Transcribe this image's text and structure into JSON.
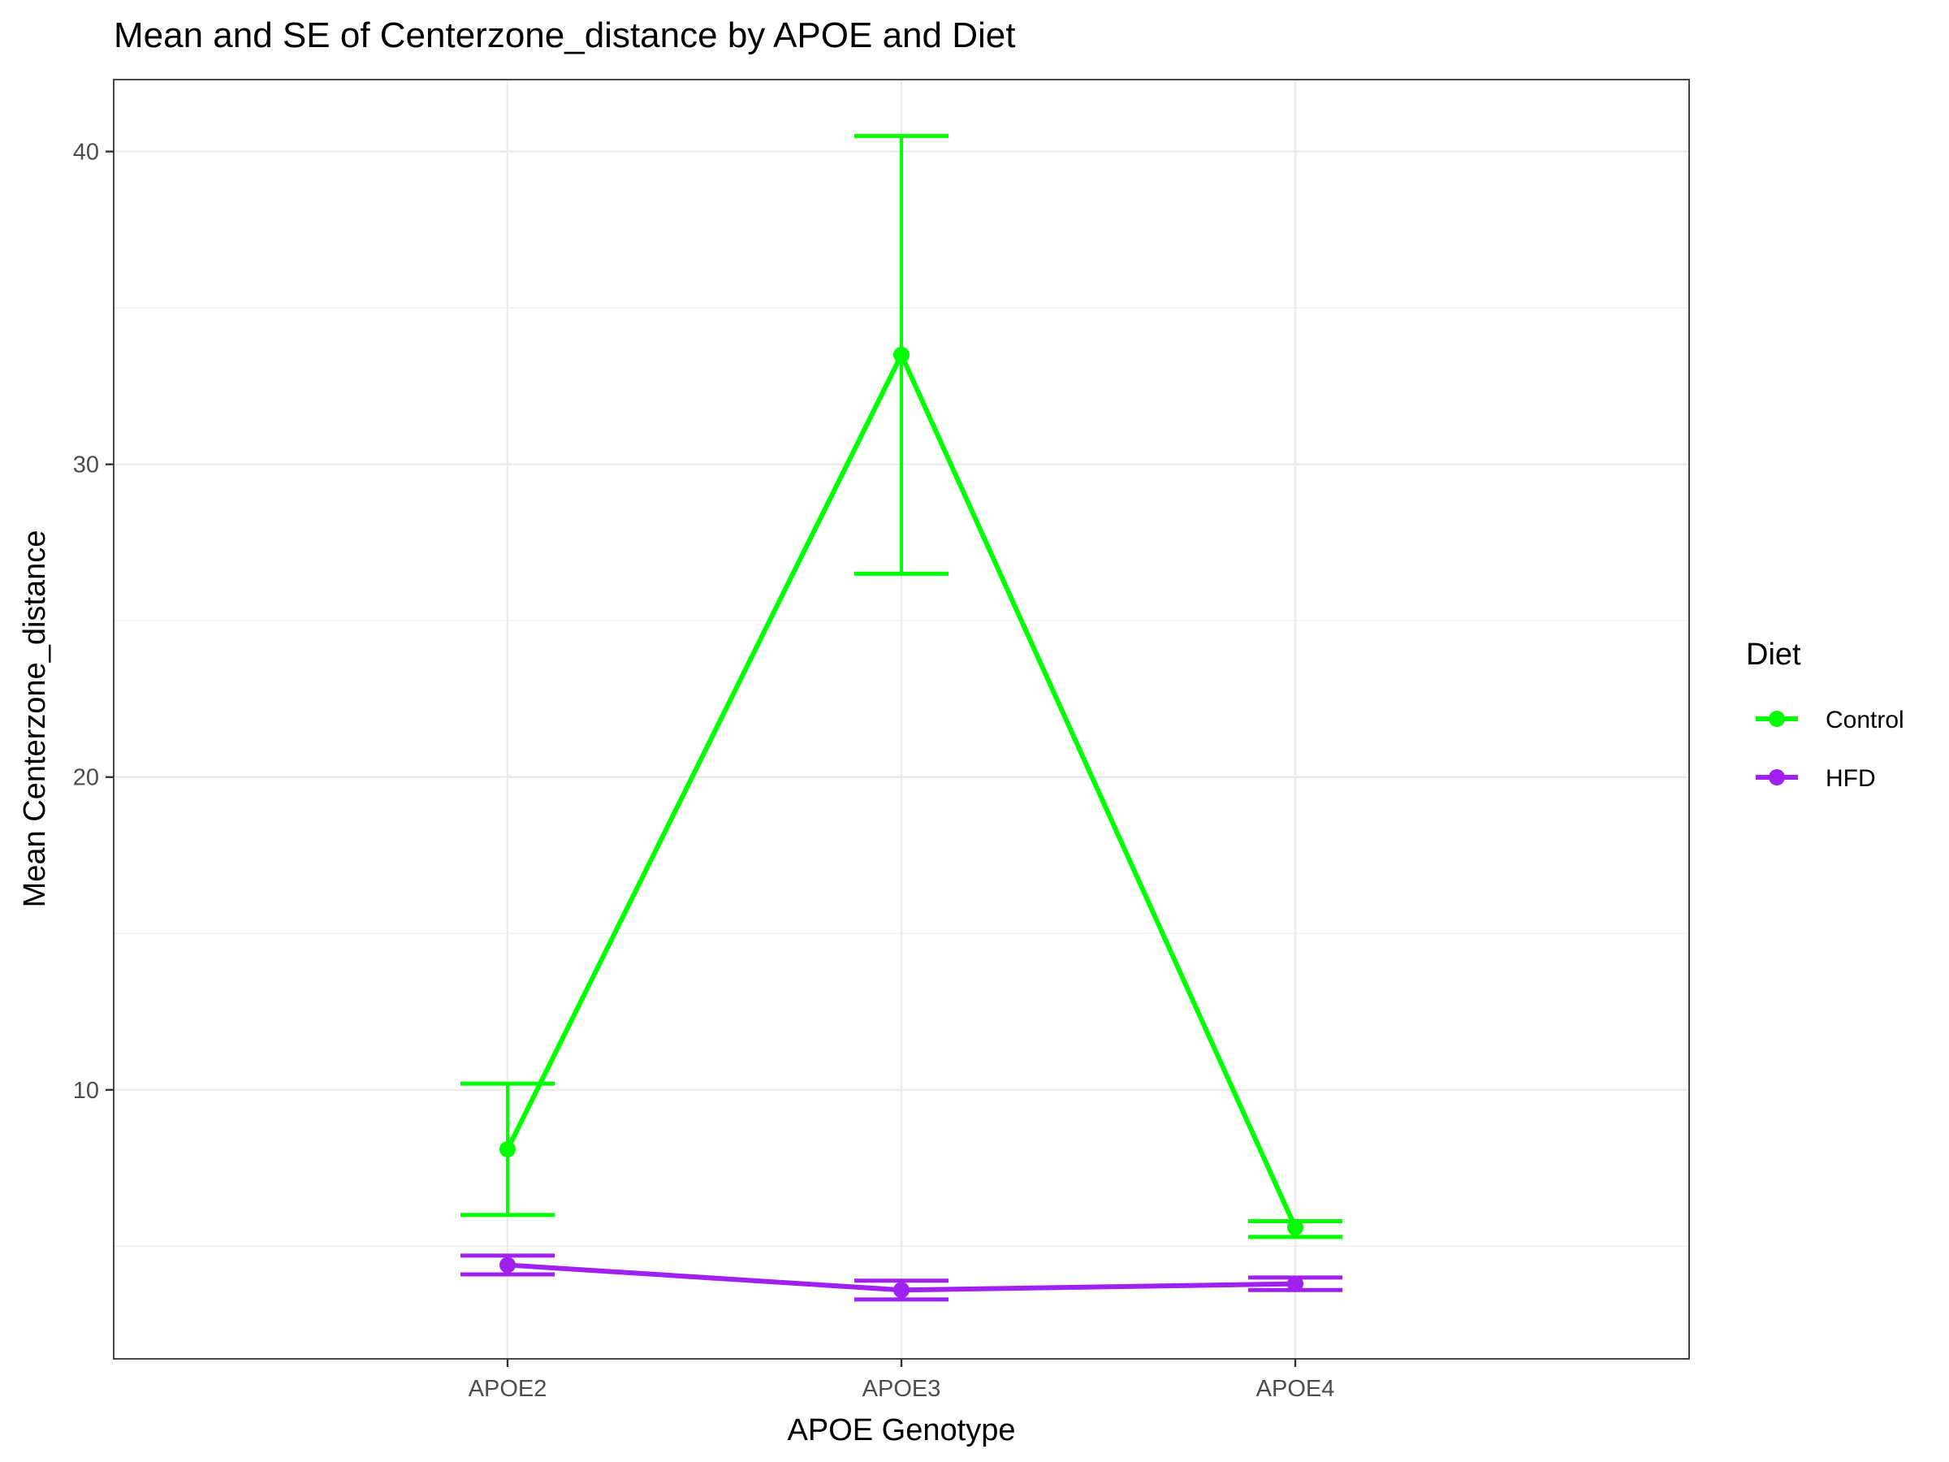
{
  "chart_data": {
    "type": "line",
    "title": "Mean and SE of Centerzone_distance by APOE and Diet",
    "xlabel": "APOE Genotype",
    "ylabel": "Mean Centerzone_distance",
    "categories": [
      "APOE2",
      "APOE3",
      "APOE4"
    ],
    "ylim": [
      1.4,
      42.3
    ],
    "yticks": [
      10,
      20,
      30,
      40
    ],
    "ytick_labels": [
      "10",
      "20",
      "30",
      "40"
    ],
    "legend": {
      "title": "Diet",
      "placement": "right"
    },
    "series": [
      {
        "name": "Control",
        "color": "#00ff00",
        "values": [
          8.1,
          33.5,
          5.6
        ],
        "se_lower": [
          6.0,
          26.5,
          5.3
        ],
        "se_upper": [
          10.2,
          40.5,
          5.8
        ]
      },
      {
        "name": "HFD",
        "color": "#a020f0",
        "values": [
          4.4,
          3.6,
          3.8
        ],
        "se_lower": [
          4.1,
          3.3,
          3.6
        ],
        "se_upper": [
          4.7,
          3.9,
          4.0
        ]
      }
    ]
  }
}
